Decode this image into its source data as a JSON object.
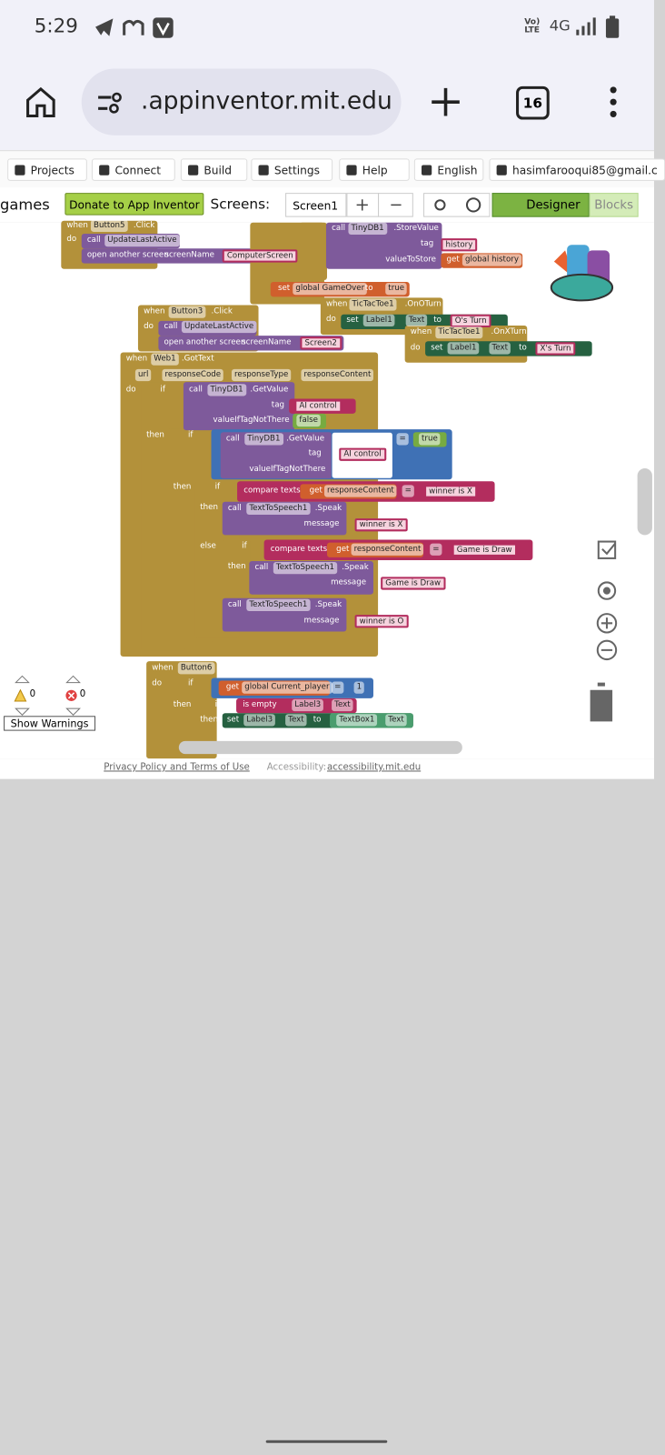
{
  "status_bar": {
    "time": "5:29",
    "network": "4G"
  },
  "browser": {
    "url": ".appinventor.mit.edu",
    "tab_count": 16
  },
  "menu": {
    "items": [
      "Projects",
      "Connect",
      "Build",
      "Settings",
      "Help",
      "English"
    ],
    "account": "hasimfarooqui85@gmail.c"
  },
  "toolbar": {
    "project": "games",
    "donate": "Donate to App Inventor",
    "screens_label": "Screens:",
    "screen": "Screen1",
    "designer": "Designer",
    "blocks": "Blocks"
  },
  "workspace": {
    "labels": [
      "when",
      "Button5",
      ".Click",
      "do",
      "call",
      "UpdateLastActive",
      "open another screen",
      "screenName",
      "ComputerScreen",
      "call",
      "TinyDB1",
      ".StoreValue",
      "tag",
      "history",
      "valueToStore",
      "get",
      "global history",
      "set",
      "global GameOver",
      "to",
      "true",
      "when",
      "TicTacToe1",
      ".OnOTurn",
      "do",
      "set",
      "Label1",
      "Text",
      "to",
      "O's Turn",
      "when",
      "TicTacToe1",
      ".OnXTurn",
      "do",
      "set",
      "Label1",
      "Text",
      "to",
      "X's Turn",
      "when",
      "Button3",
      ".Click",
      "do",
      "call",
      "UpdateLastActive",
      "open another screen",
      "screenName",
      "Screen2",
      "when",
      "Web1",
      ".GotText",
      "url",
      "responseCode",
      "responseType",
      "responseContent",
      "do",
      "if",
      "call",
      "TinyDB1",
      ".GetValue",
      "tag",
      "AI control",
      "valueIfTagNotThere",
      "false",
      "then",
      "if",
      "call",
      "TinyDB1",
      ".GetValue",
      "tag",
      "AI control",
      "valueIfTagNotThere",
      "=",
      "true",
      "then",
      "if",
      "compare texts",
      "get",
      "responseContent",
      "=",
      "winner is X",
      "then",
      "call",
      "TextToSpeech1",
      ".Speak",
      "message",
      "winner is X",
      "else",
      "if",
      "compare texts",
      "get",
      "responseContent",
      "=",
      "Game is Draw",
      "then",
      "call",
      "TextToSpeech1",
      ".Speak",
      "message",
      "Game is Draw",
      "call",
      "TextToSpeech1",
      ".Speak",
      "message",
      "winner is O",
      "when",
      "Button6",
      ".Click",
      "do",
      "if",
      "get",
      "global Current_player",
      "=",
      "1",
      "then",
      "if",
      "is empty",
      "Label3",
      "Text",
      "then",
      "set",
      "Label3",
      "Text",
      "to",
      "TextBox1",
      "Text"
    ],
    "warnings": 0,
    "errors": 0,
    "show_warnings": "Show Warnings"
  },
  "footer": {
    "privacy": "Privacy Policy and Terms of Use",
    "accessibility_label": "Accessibility:",
    "accessibility_link": "accessibility.mit.edu"
  }
}
